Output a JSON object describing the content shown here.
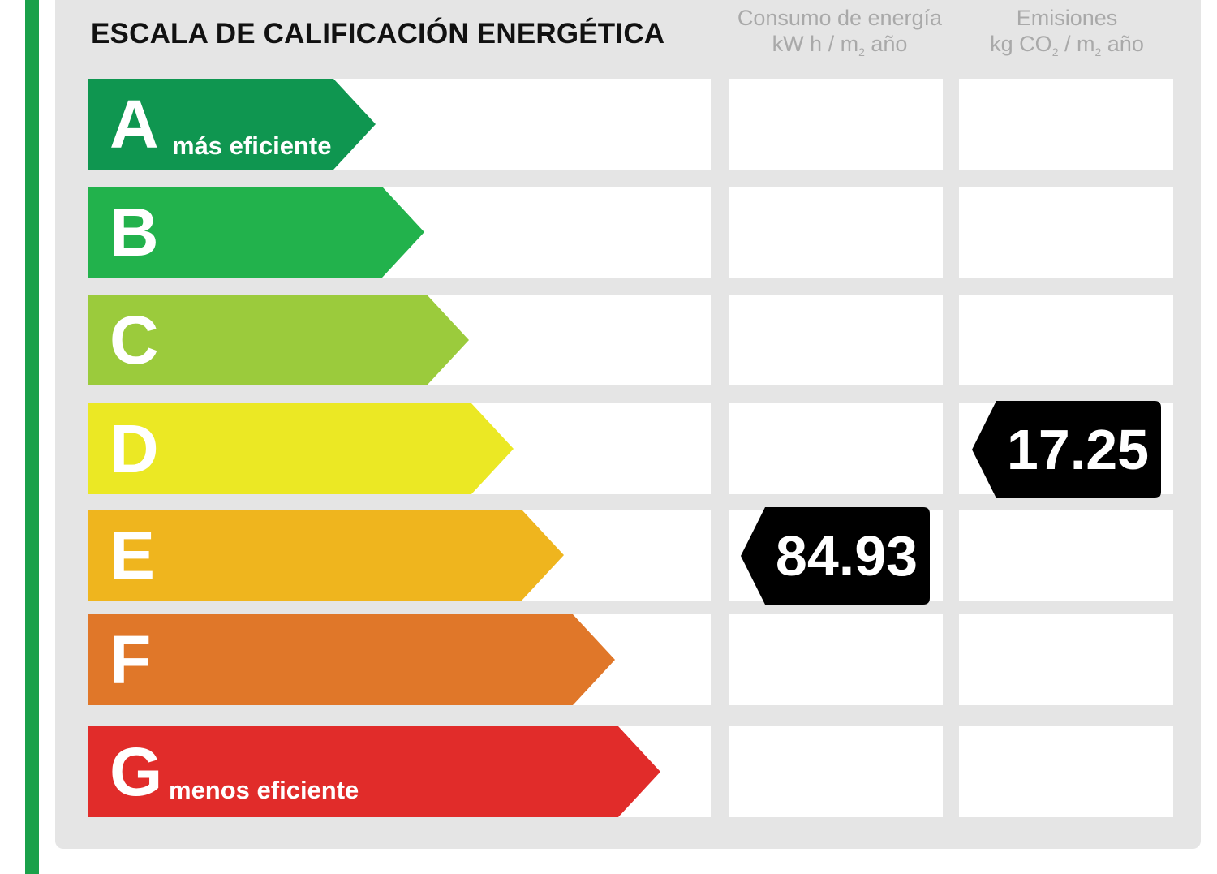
{
  "title": "ESCALA DE CALIFICACIÓN ENERGÉTICA",
  "columns": {
    "consumption": {
      "line1": "Consumo de energía",
      "line2a": "kW h / m",
      "line2sub": "2",
      "line2b": " año"
    },
    "emissions": {
      "line1": "Emisiones",
      "line2a": "kg CO",
      "line2sub1": "2",
      "line2mid": " / m",
      "line2sub2": "2",
      "line2b": " año"
    }
  },
  "classes": [
    {
      "letter": "A",
      "label": "más eficiente",
      "color": "#0f9650"
    },
    {
      "letter": "B",
      "label": "",
      "color": "#22b24c"
    },
    {
      "letter": "C",
      "label": "",
      "color": "#9bcb3c"
    },
    {
      "letter": "D",
      "label": "",
      "color": "#ebe824"
    },
    {
      "letter": "E",
      "label": "",
      "color": "#efb51e"
    },
    {
      "letter": "F",
      "label": "",
      "color": "#e07729"
    },
    {
      "letter": "G",
      "label": "menos eficiente",
      "color": "#e12c2a"
    }
  ],
  "ratings": {
    "consumption": {
      "class": "E",
      "value": "84.93"
    },
    "emissions": {
      "class": "D",
      "value": "17.25"
    }
  },
  "colors": {
    "tag": "#000000",
    "side_bar": "#1aa14a",
    "panel": "#e5e5e5"
  }
}
